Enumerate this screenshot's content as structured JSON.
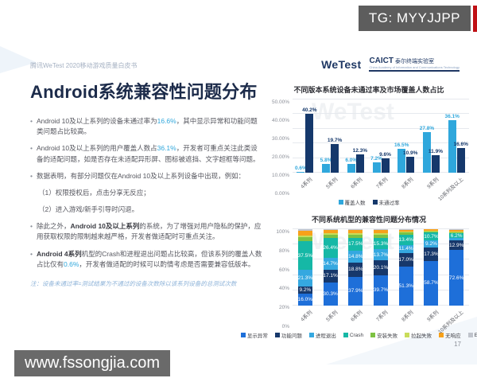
{
  "overlays": {
    "tg_badge": "TG: MYYJJPP",
    "site_badge": "www.fssongjia.com"
  },
  "header": {
    "breadcrumb": "腾讯WeTest   2020移动游戏质量白皮书",
    "wetest_logo": "WeTest",
    "caict_name": "CAICT",
    "caict_sub": "泰尔终端实验室",
    "caict_tiny": "China Academy of Information and Communications Technology"
  },
  "title": "Android系统兼容性问题分布",
  "bullets": [
    {
      "sub": false,
      "runs": [
        {
          "t": "Android 10及以上系列的设备未通过率为"
        },
        {
          "t": "16.6%",
          "s": "hl"
        },
        {
          "t": "，其中显示异常和功能问题类问题占比较高。"
        }
      ]
    },
    {
      "sub": false,
      "runs": [
        {
          "t": "Android 10及以上系列的用户覆盖人数占"
        },
        {
          "t": "36.1%",
          "s": "hl"
        },
        {
          "t": "，开发者可重点关注此类设备的适配问题，如是否存在未适配异形屏、图标被遮挡、文字超框等问题。"
        }
      ]
    },
    {
      "sub": false,
      "runs": [
        {
          "t": "数据表明，有部分问题仅在Android 10及以上系列设备中出现，例如："
        }
      ]
    },
    {
      "sub": true,
      "runs": [
        {
          "t": "（1）权限授权后，点击分享无反应；"
        }
      ]
    },
    {
      "sub": true,
      "runs": [
        {
          "t": "（2）进入游戏/新手引导时闪退。"
        }
      ]
    },
    {
      "sub": false,
      "runs": [
        {
          "t": "除此之外，"
        },
        {
          "t": "Android 10及以上系列",
          "s": "b"
        },
        {
          "t": "的系统，为了增强对用户隐私的保护，应用获取权限的限制越来越严格，开发者做适配时可重点关注。"
        }
      ]
    },
    {
      "sub": false,
      "runs": [
        {
          "t": "Android 4系列",
          "s": "b"
        },
        {
          "t": "机型的Crash和进程退出问题占比较高，但该系列的覆盖人数占比仅有"
        },
        {
          "t": "0.6%",
          "s": "hl"
        },
        {
          "t": "，开发者做适配的时候可以酌情考虑是否需要兼容低版本。"
        }
      ]
    }
  ],
  "note": "注：设备未通过率=测试结果为不通过的设备次数除以该系列设备的总测试次数",
  "page_number": "17",
  "chart_watermark": "WeTest",
  "colors": {
    "accent_blue": "#2fa7dc",
    "navy": "#15386b",
    "title_navy": "#1c2b4a",
    "badge_gray": "#5d5d5d",
    "red_strip": "#c01116"
  },
  "chart_data": [
    {
      "type": "bar",
      "title": "不同版本系统设备未通过率及市场覆盖人数占比",
      "categories": [
        "4系列",
        "5系列",
        "6系列",
        "7系列",
        "8系列",
        "9系列",
        "10系列及以上"
      ],
      "series": [
        {
          "name": "覆盖人数",
          "color": "#2fa7dc",
          "values": [
            0.6,
            5.8,
            6.0,
            7.2,
            16.5,
            27.8,
            36.1
          ]
        },
        {
          "name": "未通过率",
          "color": "#15386b",
          "values": [
            40.2,
            19.7,
            12.3,
            9.6,
            10.9,
            11.9,
            16.6
          ]
        }
      ],
      "ylim": [
        0,
        50
      ],
      "yticks": [
        "0.00%",
        "10.00%",
        "20.00%",
        "30.00%",
        "40.00%",
        "50.00%"
      ],
      "grid": true,
      "legend_position": "bottom"
    },
    {
      "type": "bar",
      "subtype": "stacked-100",
      "title": "不同系统机型的兼容性问题分布情况",
      "categories": [
        "4系列",
        "5系列",
        "6系列",
        "7系列",
        "8系列",
        "9系列",
        "10系列及以上"
      ],
      "series": [
        {
          "name": "显示异常",
          "color": "#1e6fd9",
          "values": [
            16.0,
            30.3,
            37.9,
            39.7,
            51.3,
            58.7,
            72.6
          ]
        },
        {
          "name": "功能问题",
          "color": "#17386b",
          "values": [
            9.2,
            17.1,
            18.8,
            20.1,
            17.0,
            17.3,
            12.9
          ]
        },
        {
          "name": "进程退出",
          "color": "#35a8e0",
          "values": [
            21.3,
            14.7,
            14.8,
            13.7,
            11.4,
            9.2,
            3.0
          ]
        },
        {
          "name": "Crash",
          "color": "#16b8a6",
          "values": [
            37.5,
            26.4,
            17.5,
            15.3,
            13.4,
            10.7,
            6.2
          ]
        },
        {
          "name": "安装失败",
          "color": "#7dc242",
          "values": [
            5.5,
            4.0,
            4.0,
            4.0,
            2.5,
            1.5,
            1.5
          ]
        },
        {
          "name": "拉起失败",
          "color": "#c9dc5a",
          "values": [
            2.5,
            2.0,
            2.0,
            2.0,
            1.5,
            1.0,
            1.0
          ]
        },
        {
          "name": "无响应",
          "color": "#f7a11a",
          "values": [
            5.5,
            4.5,
            4.0,
            4.2,
            2.4,
            1.3,
            2.0
          ]
        },
        {
          "name": "Exception",
          "color": "#c0c4cc",
          "values": [
            2.5,
            1.0,
            1.0,
            1.0,
            0.5,
            0.3,
            0.8
          ]
        }
      ],
      "label_threshold": 6.0,
      "ylim": [
        0,
        100
      ],
      "yticks": [
        "0%",
        "20%",
        "40%",
        "60%",
        "80%",
        "100%"
      ],
      "grid": true,
      "legend_position": "bottom"
    }
  ]
}
